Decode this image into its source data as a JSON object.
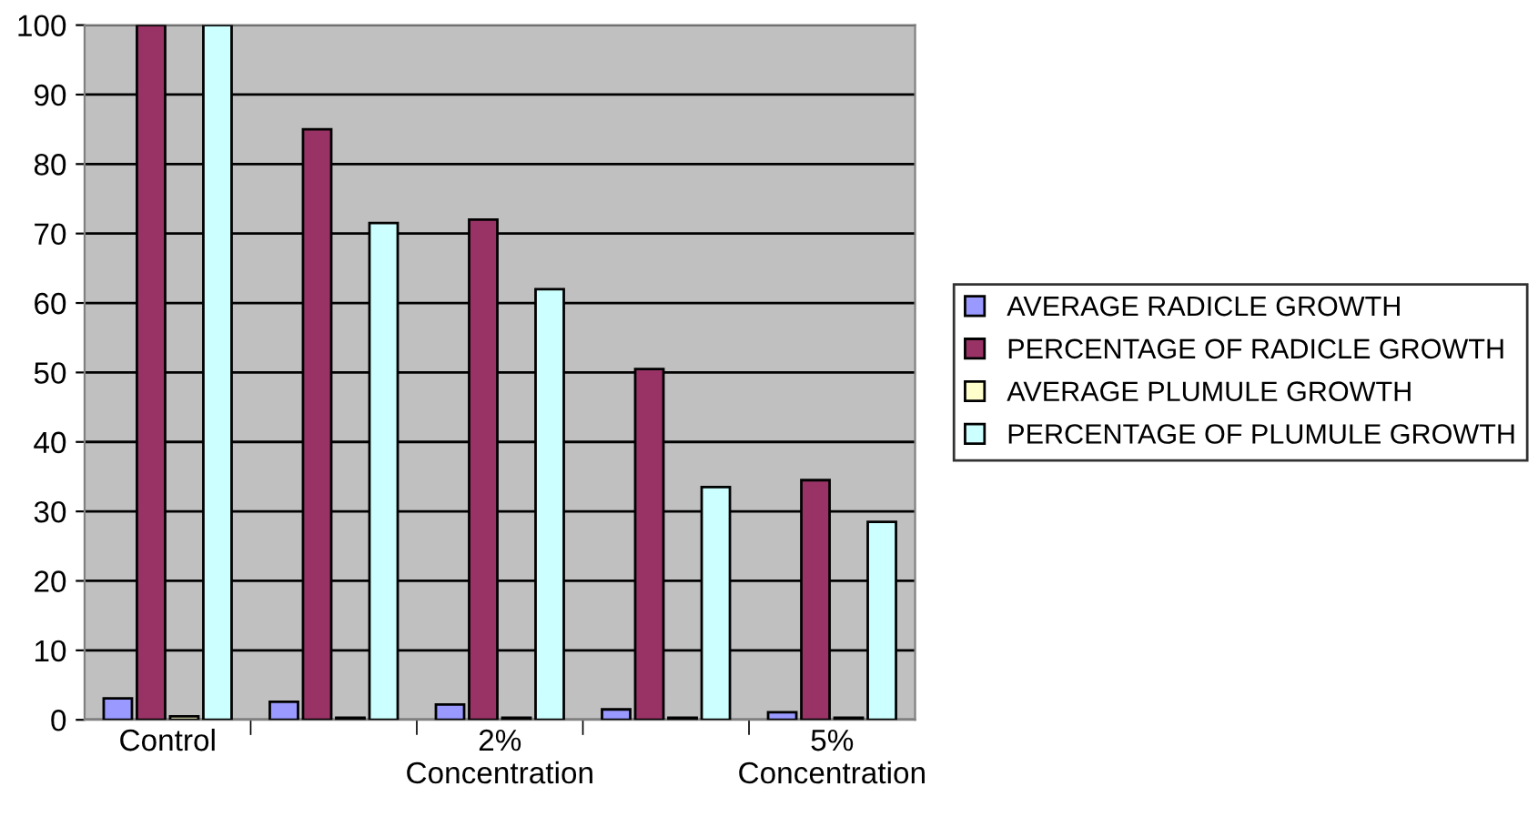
{
  "chart_data": {
    "type": "bar",
    "categories": [
      "Control",
      null,
      "2%\nConcentration",
      null,
      "5%\nConcentration"
    ],
    "series": [
      {
        "name": "AVERAGE RADICLE GROWTH",
        "color": "#9999ff",
        "values": [
          3.1,
          2.6,
          2.2,
          1.5,
          1.1
        ]
      },
      {
        "name": "PERCENTAGE OF RADICLE GROWTH",
        "color": "#993366",
        "values": [
          100,
          85,
          72,
          50.5,
          34.5
        ]
      },
      {
        "name": "AVERAGE PLUMULE GROWTH",
        "color": "#ffffcc",
        "values": [
          0.5,
          0.3,
          0.3,
          0.3,
          0.3
        ]
      },
      {
        "name": "PERCENTAGE OF PLUMULE GROWTH",
        "color": "#ccffff",
        "values": [
          100,
          71.5,
          62,
          33.5,
          28.5
        ]
      }
    ],
    "ylim": [
      0,
      100
    ],
    "yticks": [
      0,
      10,
      20,
      30,
      40,
      50,
      60,
      70,
      80,
      90,
      100
    ],
    "grid": "y",
    "legend": "right"
  }
}
